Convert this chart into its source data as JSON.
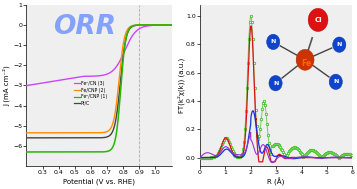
{
  "left_panel": {
    "title": "ORR",
    "xlabel": "Potential (V vs. RHE)",
    "ylabel": "J (mA cm⁻²)",
    "xlim": [
      0.2,
      1.1
    ],
    "ylim": [
      -7,
      1
    ],
    "xticks": [
      0.3,
      0.4,
      0.5,
      0.6,
      0.7,
      0.8,
      0.9,
      1.0
    ],
    "yticks": [
      -6,
      -5,
      -4,
      -3,
      -2,
      -1,
      0,
      1
    ],
    "vline_x": 0.9,
    "vline_color": "#aaaaaa",
    "curves": [
      {
        "label": "Feⁿ/CN (3)",
        "color": "#cc44ff",
        "onset": 0.81,
        "plateau": -2.55,
        "steep": 28
      },
      {
        "label": "Fe/CNP (2)",
        "color": "#ff8c00",
        "onset": 0.775,
        "plateau": -5.35,
        "steep": 60
      },
      {
        "label": "Feⁿ/CNP (1)",
        "color": "#22bb00",
        "onset": 0.785,
        "plateau": -6.3,
        "steep": 65
      },
      {
        "label": "Pt/C",
        "color": "#444444",
        "onset": 0.783,
        "plateau": -5.6,
        "steep": 58
      }
    ],
    "legend_labels": [
      "Feⁿ/CN (3)",
      "Fe/CNP (2)",
      "Feⁿ/CNP (1)",
      "Pt/C"
    ],
    "legend_colors": [
      "#cc44ff",
      "#ff8c00",
      "#22bb00",
      "#444444"
    ],
    "bg_color": "#efefef",
    "title_color": "#7799ff",
    "title_fontsize": 20
  },
  "right_panel": {
    "xlabel": "R (Å)",
    "ylabel": "FT(k²χ(k)) (a.u.)",
    "xlim": [
      0,
      6
    ],
    "ylim": [
      -0.06,
      1.08
    ],
    "xticks": [
      0,
      1,
      2,
      3,
      4,
      5,
      6
    ],
    "yticks": [
      0.0,
      0.2,
      0.4,
      0.6,
      0.8,
      1.0
    ],
    "bg_color": "#efefef",
    "green_color": "#22bb00",
    "red_color": "#dd1111",
    "blue_color": "#1133dd",
    "purple_color": "#9933cc"
  }
}
